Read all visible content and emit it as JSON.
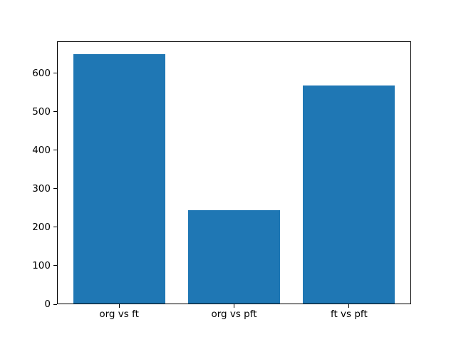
{
  "chart_data": {
    "type": "bar",
    "title": "",
    "xlabel": "",
    "ylabel": "",
    "categories": [
      "org vs ft",
      "org vs pft",
      "ft vs pft"
    ],
    "values": [
      650,
      245,
      567
    ],
    "yticks": [
      0,
      100,
      200,
      300,
      400,
      500,
      600
    ],
    "ylim": [
      0,
      682.5
    ],
    "bar_color": "#1f77b4",
    "spine_color": "#000000",
    "background_color": "#ffffff",
    "grid": false,
    "legend": false
  }
}
